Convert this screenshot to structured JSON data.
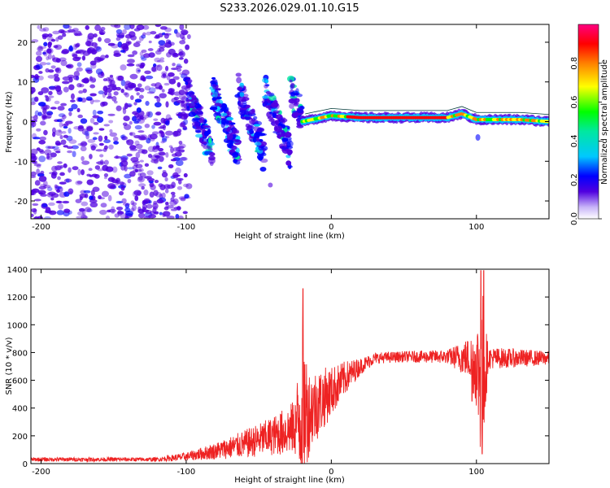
{
  "figure_title": "S233.2026.029.01.10.G15",
  "chart_data": [
    {
      "type": "heatmap",
      "title": "S233.2026.029.01.10.G15",
      "xlabel": "Height of straight line (km)",
      "ylabel": "Frequency (Hz)",
      "xlim": [
        -207,
        150
      ],
      "ylim": [
        -24.5,
        24.5
      ],
      "xticks": [
        -200,
        -100,
        0,
        100
      ],
      "yticks": [
        -20,
        -10,
        0,
        10,
        20
      ],
      "xtick_labels": [
        "-200",
        "-100",
        "0",
        "100"
      ],
      "ytick_labels": [
        "-20",
        "-10",
        "0",
        "10",
        "20"
      ],
      "colorbar": {
        "label": "Normalized spectral amplitude",
        "range": [
          0.0,
          1.0
        ],
        "ticks": [
          0.0,
          0.2,
          0.4,
          0.6,
          0.8
        ],
        "tick_labels": [
          "0.0",
          "0.2",
          "0.4",
          "0.6",
          "0.8"
        ],
        "colormap": [
          "#ffffff",
          "#a07ef0",
          "#5000e0",
          "#0000ff",
          "#00c8ff",
          "#00ff60",
          "#ffff00",
          "#ff8000",
          "#ff0000",
          "#ff0080"
        ]
      },
      "regions": [
        {
          "name": "noise",
          "x_range": [
            -207,
            -100
          ],
          "freq_range": [
            -24.5,
            24.5
          ],
          "amplitude": 0.1
        },
        {
          "name": "multipath",
          "x_range": [
            -100,
            -20
          ],
          "freq_range": [
            -12,
            10
          ],
          "amplitude": 0.25
        },
        {
          "name": "main_tone",
          "x_range": [
            -20,
            150
          ],
          "freq": [
            [
              -20,
              0.0
            ],
            [
              0,
              1.5
            ],
            [
              20,
              1.0
            ],
            [
              80,
              1.0
            ],
            [
              90,
              2.0
            ],
            [
              100,
              0.5
            ],
            [
              130,
              0.5
            ],
            [
              150,
              0.0
            ]
          ],
          "amplitude": 0.85
        }
      ]
    },
    {
      "type": "line",
      "title": "",
      "xlabel": "Height of straight line (km)",
      "ylabel": "SNR (10 * v/v)",
      "xlim": [
        -207,
        150
      ],
      "ylim": [
        0,
        1400
      ],
      "xticks": [
        -200,
        -100,
        0,
        100
      ],
      "yticks": [
        0,
        200,
        400,
        600,
        800,
        1000,
        1200,
        1400
      ],
      "xtick_labels": [
        "-200",
        "-100",
        "0",
        "100"
      ],
      "ytick_labels": [
        "0",
        "200",
        "400",
        "600",
        "800",
        "1000",
        "1200",
        "1400"
      ],
      "series": [
        {
          "name": "SNR",
          "color": "#ee2222",
          "envelope": [
            {
              "x": -207,
              "mean": 30,
              "noise": 15
            },
            {
              "x": -120,
              "mean": 30,
              "noise": 15
            },
            {
              "x": -100,
              "mean": 50,
              "noise": 30
            },
            {
              "x": -80,
              "mean": 90,
              "noise": 60
            },
            {
              "x": -60,
              "mean": 140,
              "noise": 100
            },
            {
              "x": -40,
              "mean": 200,
              "noise": 140
            },
            {
              "x": -25,
              "mean": 260,
              "noise": 200
            },
            {
              "x": -20,
              "mean": 400,
              "noise": 600
            },
            {
              "x": -15,
              "mean": 380,
              "noise": 300
            },
            {
              "x": 0,
              "mean": 520,
              "noise": 180
            },
            {
              "x": 10,
              "mean": 620,
              "noise": 120
            },
            {
              "x": 20,
              "mean": 700,
              "noise": 60
            },
            {
              "x": 30,
              "mean": 760,
              "noise": 40
            },
            {
              "x": 50,
              "mean": 770,
              "noise": 40
            },
            {
              "x": 80,
              "mean": 770,
              "noise": 50
            },
            {
              "x": 95,
              "mean": 760,
              "noise": 150
            },
            {
              "x": 100,
              "mean": 700,
              "noise": 300
            },
            {
              "x": 104,
              "mean": 600,
              "noise": 700
            },
            {
              "x": 108,
              "mean": 760,
              "noise": 80
            },
            {
              "x": 150,
              "mean": 760,
              "noise": 50
            }
          ],
          "features": [
            {
              "x": -19.5,
              "value": 1260
            },
            {
              "x": -19,
              "value": 80
            },
            {
              "x": 97,
              "value": 450
            },
            {
              "x": 103,
              "value": 1390
            },
            {
              "x": 104,
              "value": 70
            },
            {
              "x": 105,
              "value": 1390
            }
          ]
        }
      ]
    }
  ]
}
